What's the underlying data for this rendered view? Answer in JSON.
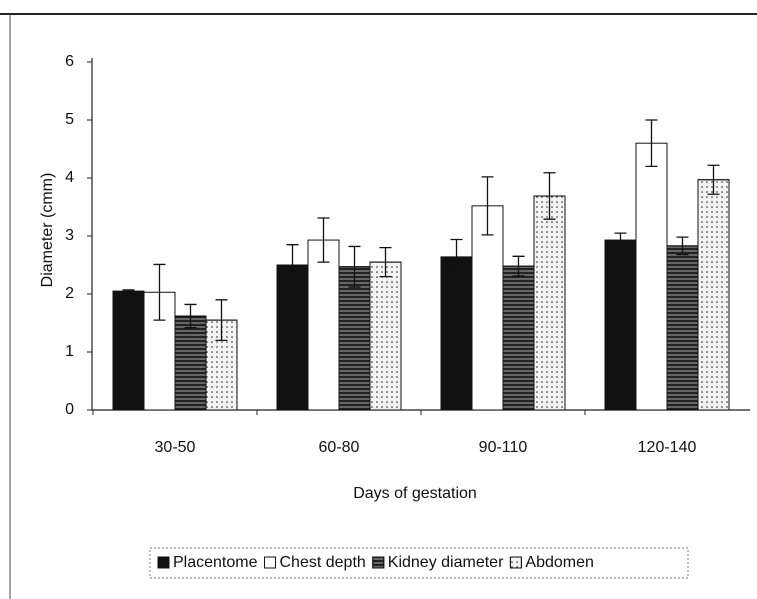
{
  "chart_data": {
    "type": "bar",
    "xlabel": "Days of gestation",
    "ylabel": "Diameter (cmm)",
    "categories": [
      "30-50",
      "60-80",
      "90-110",
      "120-140"
    ],
    "series": [
      {
        "name": "Placentome",
        "color": "#111111",
        "values": [
          2.05,
          2.5,
          2.64,
          2.93
        ],
        "errors": [
          0.02,
          0.35,
          0.3,
          0.12
        ]
      },
      {
        "name": "Chest depth",
        "color": "#ffffff",
        "values": [
          2.03,
          2.93,
          3.52,
          4.6
        ],
        "errors": [
          0.48,
          0.38,
          0.5,
          0.4
        ]
      },
      {
        "name": "Kidney diameter",
        "color": "#666666",
        "values": [
          1.62,
          2.47,
          2.48,
          2.83
        ],
        "errors": [
          0.2,
          0.35,
          0.17,
          0.15
        ]
      },
      {
        "name": "Abdomen",
        "color": "#f4f4f4",
        "values": [
          1.55,
          2.55,
          3.69,
          3.97
        ],
        "errors": [
          0.35,
          0.25,
          0.4,
          0.25
        ]
      }
    ],
    "ylim": [
      0,
      6
    ],
    "yticks": [
      0,
      1,
      2,
      3,
      4,
      5,
      6
    ]
  }
}
